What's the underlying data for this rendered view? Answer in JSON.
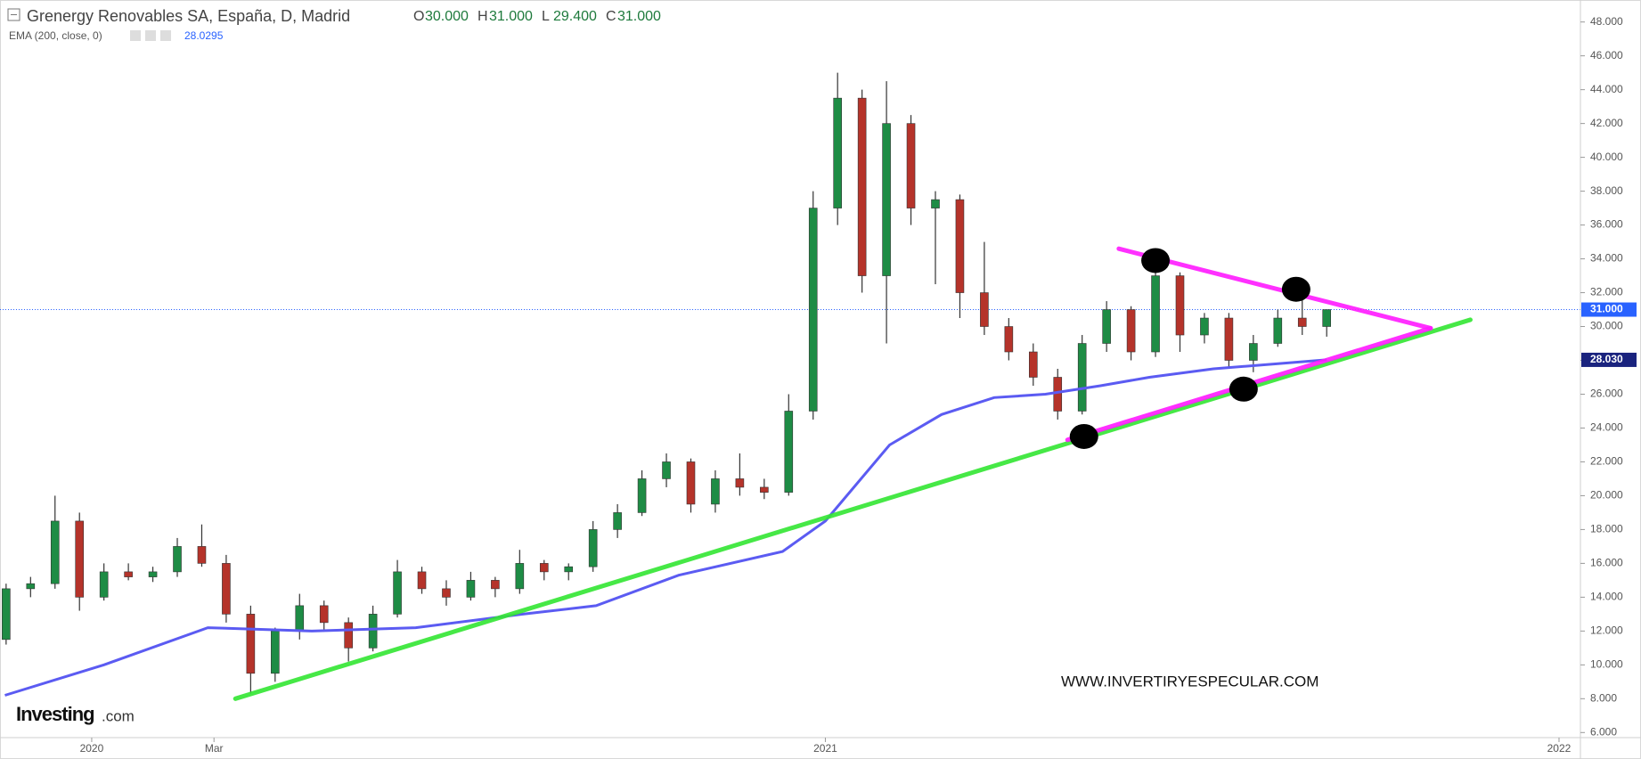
{
  "chart_data": {
    "type": "candlestick",
    "title": "Grenergy Renovables SA, España, D, Madrid",
    "ohlc_labels": [
      {
        "key": "O",
        "value": "30.000"
      },
      {
        "key": "H",
        "value": "31.000"
      },
      {
        "key": "L",
        "value": "29.400"
      },
      {
        "key": "C",
        "value": "31.000"
      }
    ],
    "x": [
      -1.4,
      -1.0,
      -0.6,
      -0.2,
      0.2,
      0.6,
      1.0,
      1.4,
      1.8,
      2.2,
      2.6,
      3.0,
      3.4,
      3.8,
      4.2,
      4.6,
      5.0,
      5.4,
      5.8,
      6.2,
      6.6,
      7.0,
      7.4,
      7.8,
      8.2,
      8.6,
      9.0,
      9.4,
      9.8,
      10.2,
      10.6,
      11.0,
      11.4,
      11.8,
      12.2,
      12.6,
      13.0,
      13.4,
      13.8,
      14.2,
      14.6,
      15.0,
      15.4,
      15.8,
      16.2,
      16.6,
      17.0,
      17.4,
      17.8,
      18.2,
      18.6,
      19.0,
      19.4,
      19.8,
      20.2
    ],
    "open": [
      11.5,
      14.5,
      14.8,
      18.5,
      14.0,
      15.5,
      15.2,
      15.5,
      17.0,
      16.0,
      13.0,
      9.5,
      12.0,
      13.5,
      12.5,
      11.0,
      13.0,
      15.5,
      14.5,
      14.0,
      15.0,
      14.5,
      16.0,
      15.5,
      15.8,
      18.0,
      19.0,
      21.0,
      22.0,
      19.5,
      21.0,
      20.5,
      20.2,
      25.0,
      37.0,
      43.5,
      33.0,
      42.0,
      37.0,
      37.5,
      32.0,
      30.0,
      28.5,
      27.0,
      25.0,
      29.0,
      31.0,
      28.5,
      33.0,
      29.5,
      30.5,
      28.0,
      29.0,
      30.5,
      30.0
    ],
    "high": [
      14.8,
      15.2,
      20.0,
      19.0,
      16.0,
      16.0,
      15.8,
      17.5,
      18.3,
      16.5,
      13.5,
      12.2,
      14.2,
      13.8,
      12.8,
      13.5,
      16.2,
      15.8,
      15.0,
      15.5,
      15.2,
      16.8,
      16.2,
      16.0,
      18.5,
      19.5,
      21.5,
      22.5,
      22.2,
      21.5,
      22.5,
      21.0,
      26.0,
      38.0,
      45.0,
      44.0,
      44.5,
      42.5,
      38.0,
      37.8,
      35.0,
      30.5,
      29.0,
      27.5,
      29.5,
      31.5,
      31.2,
      34.5,
      33.2,
      30.8,
      30.8,
      29.5,
      31.0,
      32.0,
      31.0
    ],
    "low": [
      11.2,
      14.0,
      14.5,
      13.2,
      13.8,
      15.0,
      14.9,
      15.2,
      15.8,
      12.5,
      8.3,
      9.0,
      11.5,
      12.0,
      10.2,
      10.8,
      12.8,
      14.2,
      13.5,
      13.8,
      14.0,
      14.2,
      15.0,
      15.0,
      15.5,
      17.5,
      18.8,
      20.5,
      19.0,
      19.0,
      20.0,
      19.8,
      20.0,
      24.5,
      36.0,
      32.0,
      29.0,
      36.0,
      32.5,
      30.5,
      29.5,
      28.0,
      26.5,
      24.5,
      24.8,
      28.5,
      28.0,
      28.2,
      28.5,
      29.0,
      27.5,
      27.3,
      28.8,
      29.5,
      29.4
    ],
    "close": [
      14.5,
      14.8,
      18.5,
      14.0,
      15.5,
      15.2,
      15.5,
      17.0,
      16.0,
      13.0,
      9.5,
      12.0,
      13.5,
      12.5,
      11.0,
      13.0,
      15.5,
      14.5,
      14.0,
      15.0,
      14.5,
      16.0,
      15.5,
      15.8,
      18.0,
      19.0,
      21.0,
      22.0,
      19.5,
      21.0,
      20.5,
      20.2,
      25.0,
      37.0,
      43.5,
      33.0,
      42.0,
      37.0,
      37.5,
      32.0,
      30.0,
      28.5,
      27.0,
      25.0,
      29.0,
      31.0,
      28.5,
      33.0,
      29.5,
      30.5,
      28.0,
      29.0,
      30.5,
      30.0,
      31.0
    ],
    "up_color": "#1e8c45",
    "down_color": "#b5332a",
    "series": [
      {
        "name": "EMA (200, close, 0)",
        "color": "#5b5bf2",
        "value_label": "28.0295",
        "x": [
          -1.42,
          0.2,
          1.9,
          3.6,
          5.3,
          7.05,
          8.25,
          9.6,
          11.3,
          12.0,
          13.05,
          13.9,
          14.76,
          15.6,
          16.5,
          17.3,
          18.35,
          20.2
        ],
        "values": [
          8.2,
          10,
          12.2,
          12,
          12.2,
          13,
          13.5,
          15.3,
          16.7,
          18.5,
          23,
          24.8,
          25.8,
          26,
          26.5,
          27,
          27.5,
          28.03
        ]
      }
    ],
    "ema_badge": {
      "value": 28.03,
      "label": "28.030",
      "color": "#1a237e"
    },
    "price_line": {
      "value": 31,
      "label": "31.000",
      "color": "#2962ff"
    },
    "trendlines": [
      {
        "color": "#33e633",
        "x": [
          2.35,
          22.55
        ],
        "values": [
          8.0,
          30.4
        ]
      },
      {
        "color": "#ff1aff",
        "x": [
          16.8,
          21.9
        ],
        "values": [
          34.6,
          29.9
        ]
      },
      {
        "color": "#ff1aff",
        "x": [
          15.96,
          21.9
        ],
        "values": [
          23.3,
          29.9
        ]
      }
    ],
    "markers": {
      "color": "#000000",
      "x": [
        17.4,
        19.7,
        18.84,
        16.23
      ],
      "values": [
        33.9,
        32.2,
        26.3,
        23.5
      ]
    },
    "xlim": [
      -1.5,
      24.35
    ],
    "xticks": [
      {
        "value": 0,
        "label": "2020"
      },
      {
        "value": 2,
        "label": "Mar"
      },
      {
        "value": 12,
        "label": "2021"
      },
      {
        "value": 24,
        "label": "2022"
      }
    ],
    "ylim": [
      5.7,
      49.3
    ],
    "yticks": [
      {
        "value": 6,
        "label": "6.000"
      },
      {
        "value": 8,
        "label": "8.000"
      },
      {
        "value": 10,
        "label": "10.000"
      },
      {
        "value": 12,
        "label": "12.000"
      },
      {
        "value": 14,
        "label": "14.000"
      },
      {
        "value": 16,
        "label": "16.000"
      },
      {
        "value": 18,
        "label": "18.000"
      },
      {
        "value": 20,
        "label": "20.000"
      },
      {
        "value": 22,
        "label": "22.000"
      },
      {
        "value": 24,
        "label": "24.000"
      },
      {
        "value": 26,
        "label": "26.000"
      },
      {
        "value": 28,
        "label": "28.000"
      },
      {
        "value": 30,
        "label": "30.000"
      },
      {
        "value": 32,
        "label": "32.000"
      },
      {
        "value": 34,
        "label": "34.000"
      },
      {
        "value": 36,
        "label": "36.000"
      },
      {
        "value": 38,
        "label": "38.000"
      },
      {
        "value": 40,
        "label": "40.000"
      },
      {
        "value": 42,
        "label": "42.000"
      },
      {
        "value": 44,
        "label": "44.000"
      },
      {
        "value": 46,
        "label": "46.000"
      },
      {
        "value": 48,
        "label": "48.000"
      }
    ],
    "watermark": "WWW.INVERTIRYESPECULAR.COM",
    "logo": "Investing",
    "logo_suffix": ".com"
  }
}
